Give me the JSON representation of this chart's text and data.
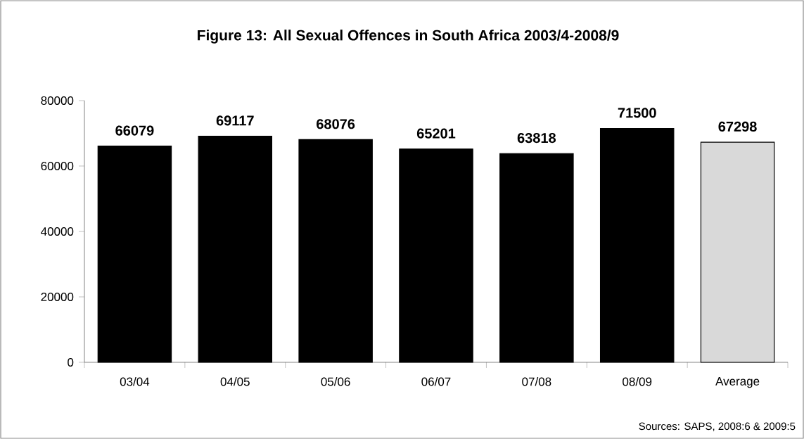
{
  "chart_data": {
    "type": "bar",
    "title": "Figure 13: All Sexual Offences in South Africa 2003/4-2008/9",
    "categories": [
      "03/04",
      "04/05",
      "05/06",
      "06/07",
      "07/08",
      "08/09",
      "Average"
    ],
    "values": [
      66079,
      69117,
      68076,
      65201,
      63818,
      71500,
      67298
    ],
    "colors": [
      "#000000",
      "#000000",
      "#000000",
      "#000000",
      "#000000",
      "#000000",
      "#d9d9d9"
    ],
    "ylim": [
      0,
      80000
    ],
    "yticks": [
      0,
      20000,
      40000,
      60000,
      80000
    ],
    "data_labels": true,
    "grid": false,
    "annotations": [
      "Sources: SAPS, 2008:6 & 2009:5"
    ]
  }
}
